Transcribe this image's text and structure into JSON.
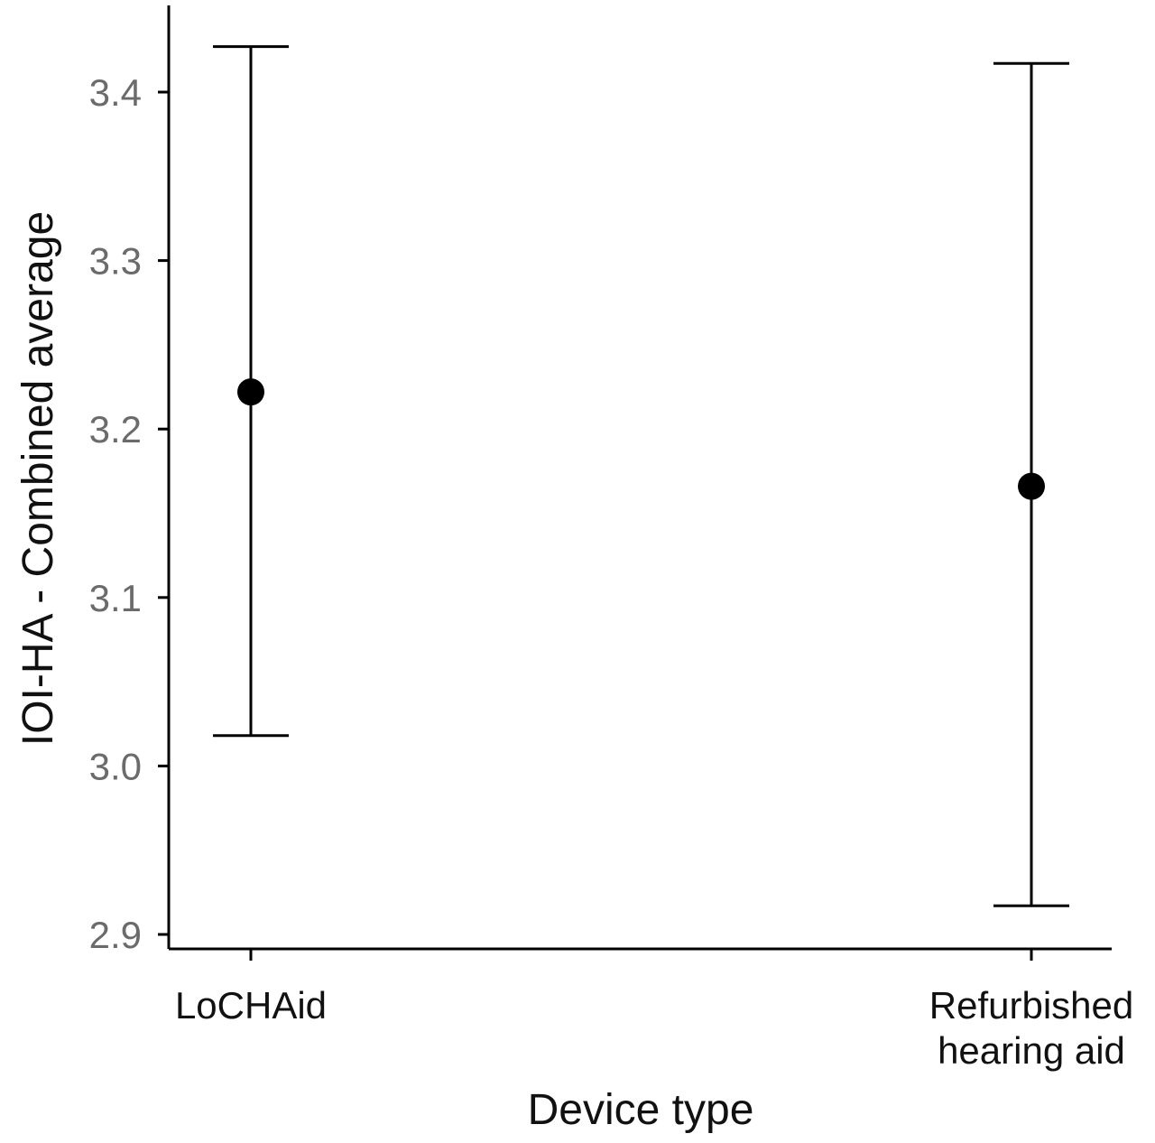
{
  "chart_data": {
    "type": "errorbar",
    "xlabel": "Device type",
    "ylabel": "IOI-HA - Combined average",
    "categories": [
      [
        "LoCHAid"
      ],
      [
        "Refurbished",
        "hearing aid"
      ]
    ],
    "points": [
      {
        "mean": 3.222,
        "lower": 3.018,
        "upper": 3.427
      },
      {
        "mean": 3.166,
        "lower": 2.917,
        "upper": 3.417
      }
    ],
    "yticks": [
      "2.9",
      "3.0",
      "3.1",
      "3.2",
      "3.3",
      "3.4"
    ],
    "ytick_values": [
      2.9,
      3.0,
      3.1,
      3.2,
      3.3,
      3.4
    ],
    "ylim": [
      2.891,
      3.454
    ],
    "grid": false,
    "legend": "none",
    "colors": {
      "marks": "#000000",
      "tick_labels": "#6b6b6b"
    }
  }
}
